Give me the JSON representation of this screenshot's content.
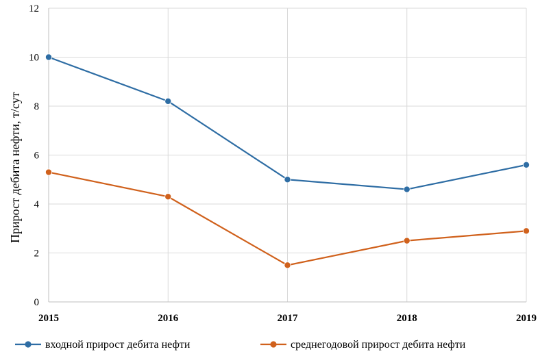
{
  "chart_data": {
    "type": "line",
    "title": "",
    "xlabel": "",
    "ylabel": "Прирост дебита нефти, т/сут",
    "x": [
      "2015",
      "2016",
      "2017",
      "2018",
      "2019"
    ],
    "ylim": [
      0,
      12
    ],
    "yticks": [
      0,
      2,
      4,
      6,
      8,
      10,
      12
    ],
    "grid": true,
    "legend_position": "bottom",
    "series": [
      {
        "name": "входной прирост дебита нефти",
        "color": "#2e6da4",
        "values": [
          10.0,
          8.2,
          5.0,
          4.6,
          5.6
        ]
      },
      {
        "name": "среднегодовой прирост дебита нефти",
        "color": "#d0611c",
        "values": [
          5.3,
          4.3,
          1.5,
          2.5,
          2.9
        ]
      }
    ]
  }
}
